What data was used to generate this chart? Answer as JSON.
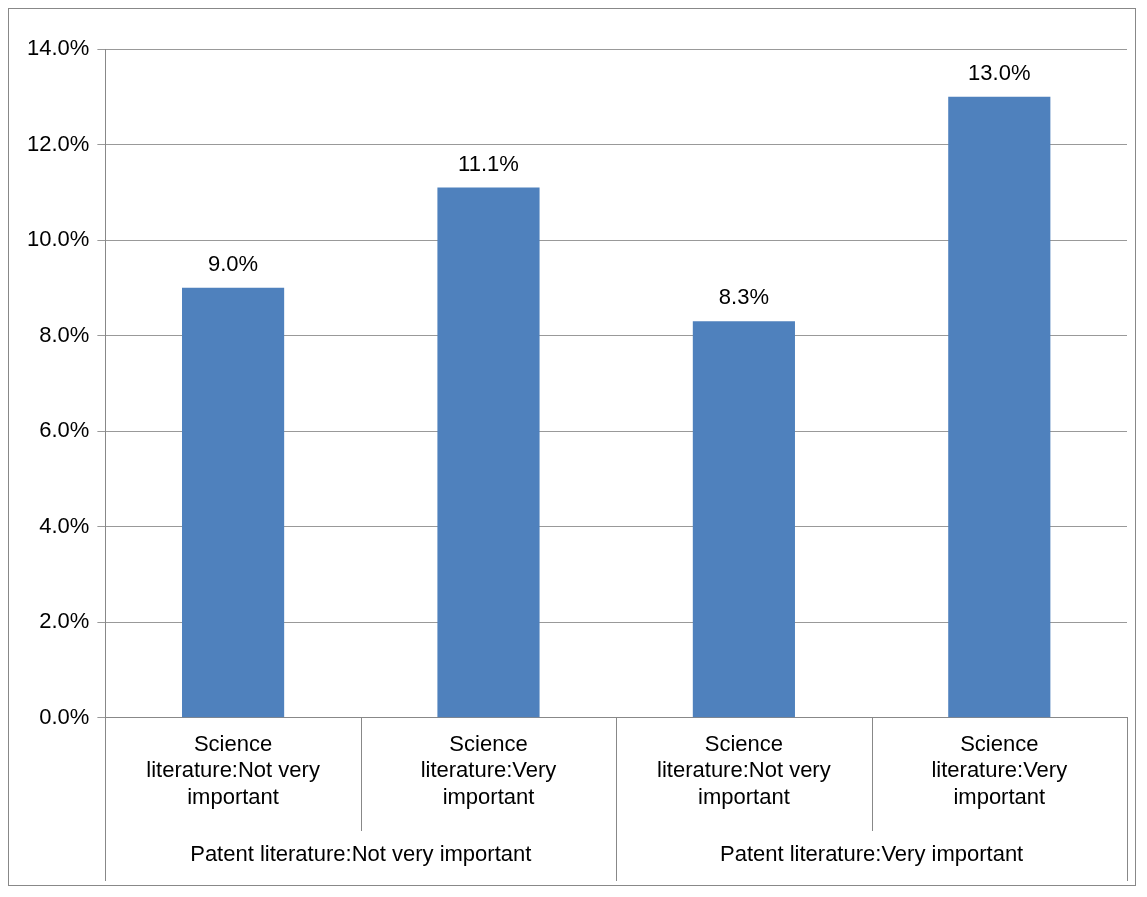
{
  "chart_data": {
    "type": "bar",
    "categories": [
      "Science literature:Not very important",
      "Science literature:Very important",
      "Science literature:Not very important",
      "Science literature:Very important"
    ],
    "values": [
      9.0,
      11.1,
      8.3,
      13.0
    ],
    "color": "#4f81bd",
    "ylim": [
      0,
      14
    ],
    "yticks": [
      {
        "value": 0,
        "label": "0.0%"
      },
      {
        "value": 2,
        "label": "2.0%"
      },
      {
        "value": 4,
        "label": "4.0%"
      },
      {
        "value": 6,
        "label": "6.0%"
      },
      {
        "value": 8,
        "label": "8.0%"
      },
      {
        "value": 10,
        "label": "10.0%"
      },
      {
        "value": 12,
        "label": "12.0%"
      },
      {
        "value": 14,
        "label": "14.0%"
      }
    ],
    "value_labels": [
      "9.0%",
      "11.1%",
      "8.3%",
      "13.0%"
    ],
    "grid": "y",
    "legend": false,
    "annotations": [
      "Patent literature:Not very important",
      "Patent literature:Very important"
    ]
  }
}
